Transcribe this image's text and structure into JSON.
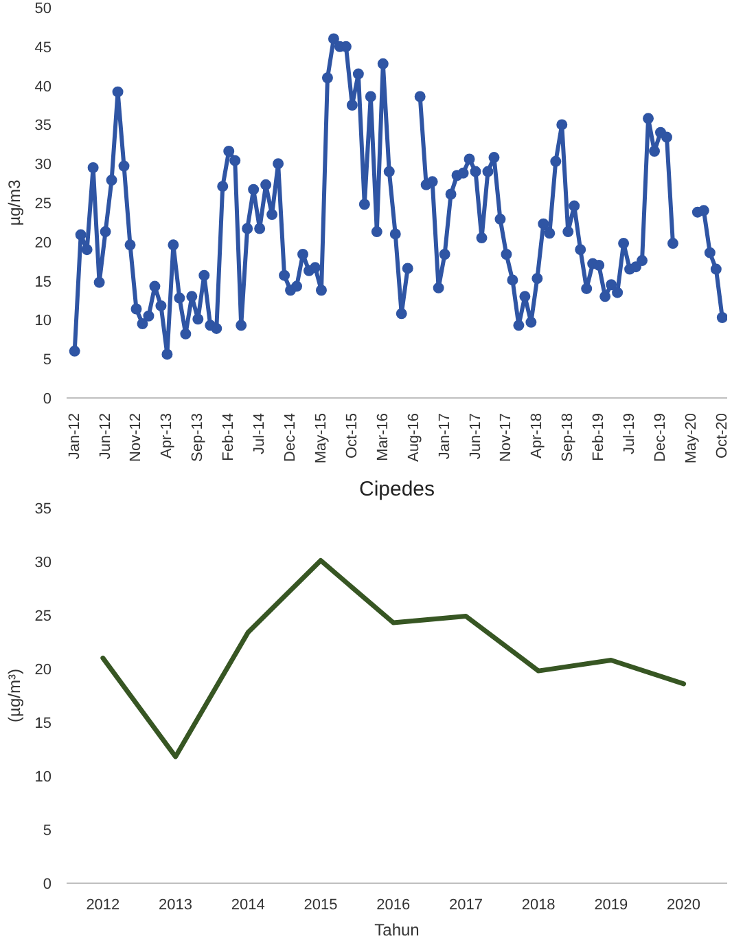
{
  "chart_data": [
    {
      "type": "line",
      "ylabel": "µg/m3",
      "marker": "circle",
      "categories": [
        "Jan-12",
        null,
        null,
        null,
        null,
        "Jun-12",
        null,
        null,
        null,
        null,
        "Nov-12",
        null,
        null,
        null,
        null,
        "Apr-13",
        null,
        null,
        null,
        null,
        "Sep-13",
        null,
        null,
        null,
        null,
        "Feb-14",
        null,
        null,
        null,
        null,
        "Jul-14",
        null,
        null,
        null,
        null,
        "Dec-14",
        null,
        null,
        null,
        null,
        "May-15",
        null,
        null,
        null,
        null,
        "Oct-15",
        null,
        null,
        null,
        null,
        "Mar-16",
        null,
        null,
        null,
        null,
        "Aug-16",
        null,
        null,
        null,
        null,
        "Jan-17",
        null,
        null,
        null,
        null,
        "Jun-17",
        null,
        null,
        null,
        null,
        "Nov-17",
        null,
        null,
        null,
        null,
        "Apr-18",
        null,
        null,
        null,
        null,
        "Sep-18",
        null,
        null,
        null,
        null,
        "Feb-19",
        null,
        null,
        null,
        null,
        "Jul-19",
        null,
        null,
        null,
        null,
        "Dec-19",
        null,
        null,
        null,
        null,
        "May-20",
        null,
        null,
        null,
        null,
        "Oct-20"
      ],
      "series": [
        {
          "color": "#2f55a4",
          "values": [
            6,
            20.9,
            19,
            29.5,
            14.8,
            21.3,
            27.9,
            39.2,
            29.7,
            19.6,
            11.4,
            9.5,
            10.5,
            14.3,
            11.8,
            5.6,
            19.6,
            12.8,
            8.2,
            13,
            10.1,
            15.7,
            9.3,
            8.9,
            27.1,
            31.6,
            30.4,
            9.3,
            21.7,
            26.7,
            21.7,
            27.3,
            23.5,
            30,
            15.7,
            13.8,
            14.3,
            18.4,
            16.3,
            16.7,
            13.8,
            41,
            46,
            45,
            45,
            37.5,
            41.5,
            24.8,
            38.6,
            21.3,
            42.8,
            29,
            21,
            10.8,
            16.6,
            null,
            38.6,
            27.3,
            27.7,
            14.1,
            18.4,
            26.1,
            28.5,
            28.8,
            30.6,
            29,
            20.5,
            29,
            30.8,
            22.9,
            18.4,
            15.1,
            9.3,
            13,
            9.7,
            15.3,
            22.3,
            21.1,
            30.3,
            35,
            21.3,
            24.6,
            19,
            14,
            17.2,
            17,
            13,
            14.5,
            13.5,
            19.8,
            16.5,
            16.8,
            17.6,
            35.8,
            31.6,
            34,
            33.4,
            19.8,
            null,
            null,
            null,
            23.8,
            24,
            18.6,
            16.5,
            10.3
          ]
        }
      ],
      "ylim": [
        0,
        50
      ],
      "yticks": [
        0,
        5,
        10,
        15,
        20,
        25,
        30,
        35,
        40,
        45,
        50
      ]
    },
    {
      "type": "line",
      "title": "Cipedes",
      "xlabel": "Tahun",
      "ylabel": "(µg/m³)",
      "marker": "none",
      "categories": [
        "2012",
        "2013",
        "2014",
        "2015",
        "2016",
        "2017",
        "2018",
        "2019",
        "2020"
      ],
      "series": [
        {
          "color": "#375623",
          "values": [
            21,
            11.8,
            23.4,
            30.1,
            24.3,
            24.9,
            19.8,
            20.8,
            18.6
          ]
        }
      ],
      "ylim": [
        0,
        35
      ],
      "yticks": [
        0,
        5,
        10,
        15,
        20,
        25,
        30,
        35
      ]
    }
  ]
}
